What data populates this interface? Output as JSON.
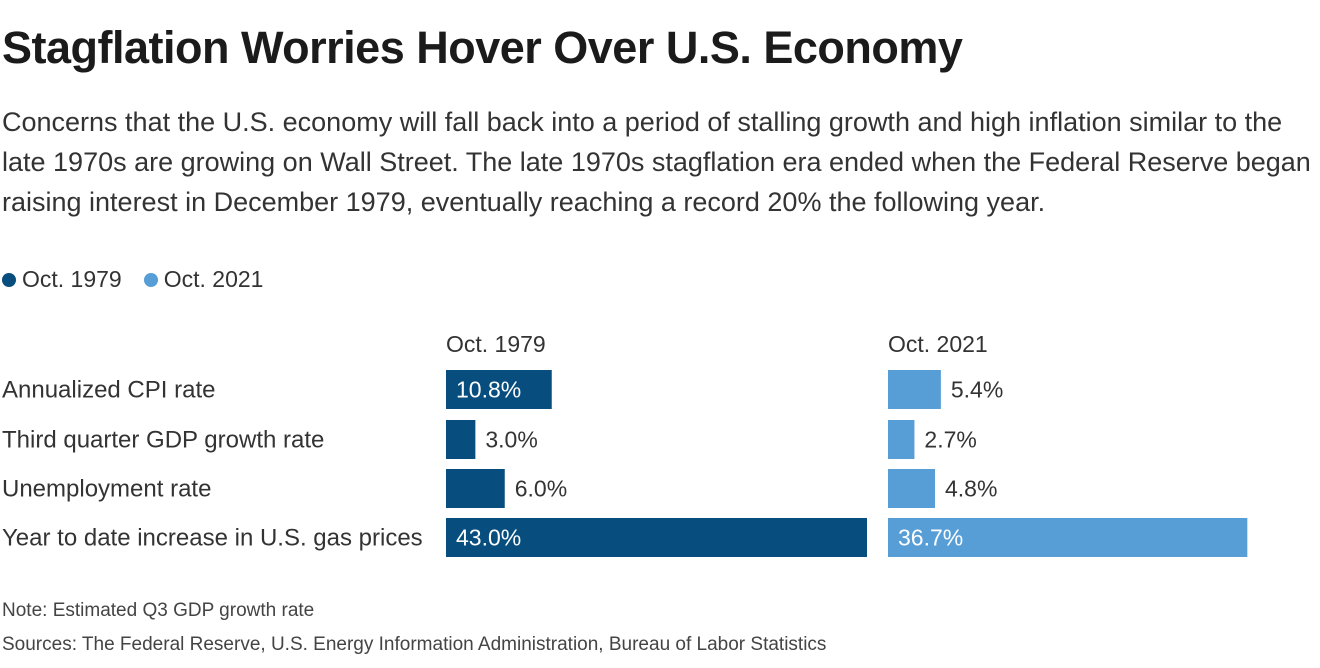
{
  "title": "Stagflation Worries Hover Over U.S. Economy",
  "subtitle": "Concerns that the U.S. economy will fall back into a period of stalling growth and high inflation similar to the late 1970s are growing on Wall Street. The late 1970s stagflation era ended when the Federal Reserve began raising interest in December 1979, eventually reaching a record 20% the following year.",
  "legend": [
    {
      "label": "Oct. 1979",
      "color": "#074e7f"
    },
    {
      "label": "Oct. 2021",
      "color": "#579ed6"
    }
  ],
  "chart_data": {
    "type": "bar",
    "categories": [
      "Annualized CPI rate",
      "Third quarter GDP growth rate",
      "Unemployment rate",
      "Year to date increase in U.S. gas prices"
    ],
    "series": [
      {
        "name": "Oct. 1979",
        "values": [
          10.8,
          3.0,
          6.0,
          43.0
        ],
        "labels": [
          "10.8%",
          "3.0%",
          "6.0%",
          "43.0%"
        ],
        "color": "#074e7f"
      },
      {
        "name": "Oct. 2021",
        "values": [
          5.4,
          2.7,
          4.8,
          36.7
        ],
        "labels": [
          "5.4%",
          "2.7%",
          "4.8%",
          "36.7%"
        ],
        "color": "#579ed6"
      }
    ]
  },
  "note": "Note: Estimated Q3 GDP growth rate",
  "sources": "Sources: The Federal Reserve, U.S. Energy Information Administration, Bureau of Labor Statistics"
}
